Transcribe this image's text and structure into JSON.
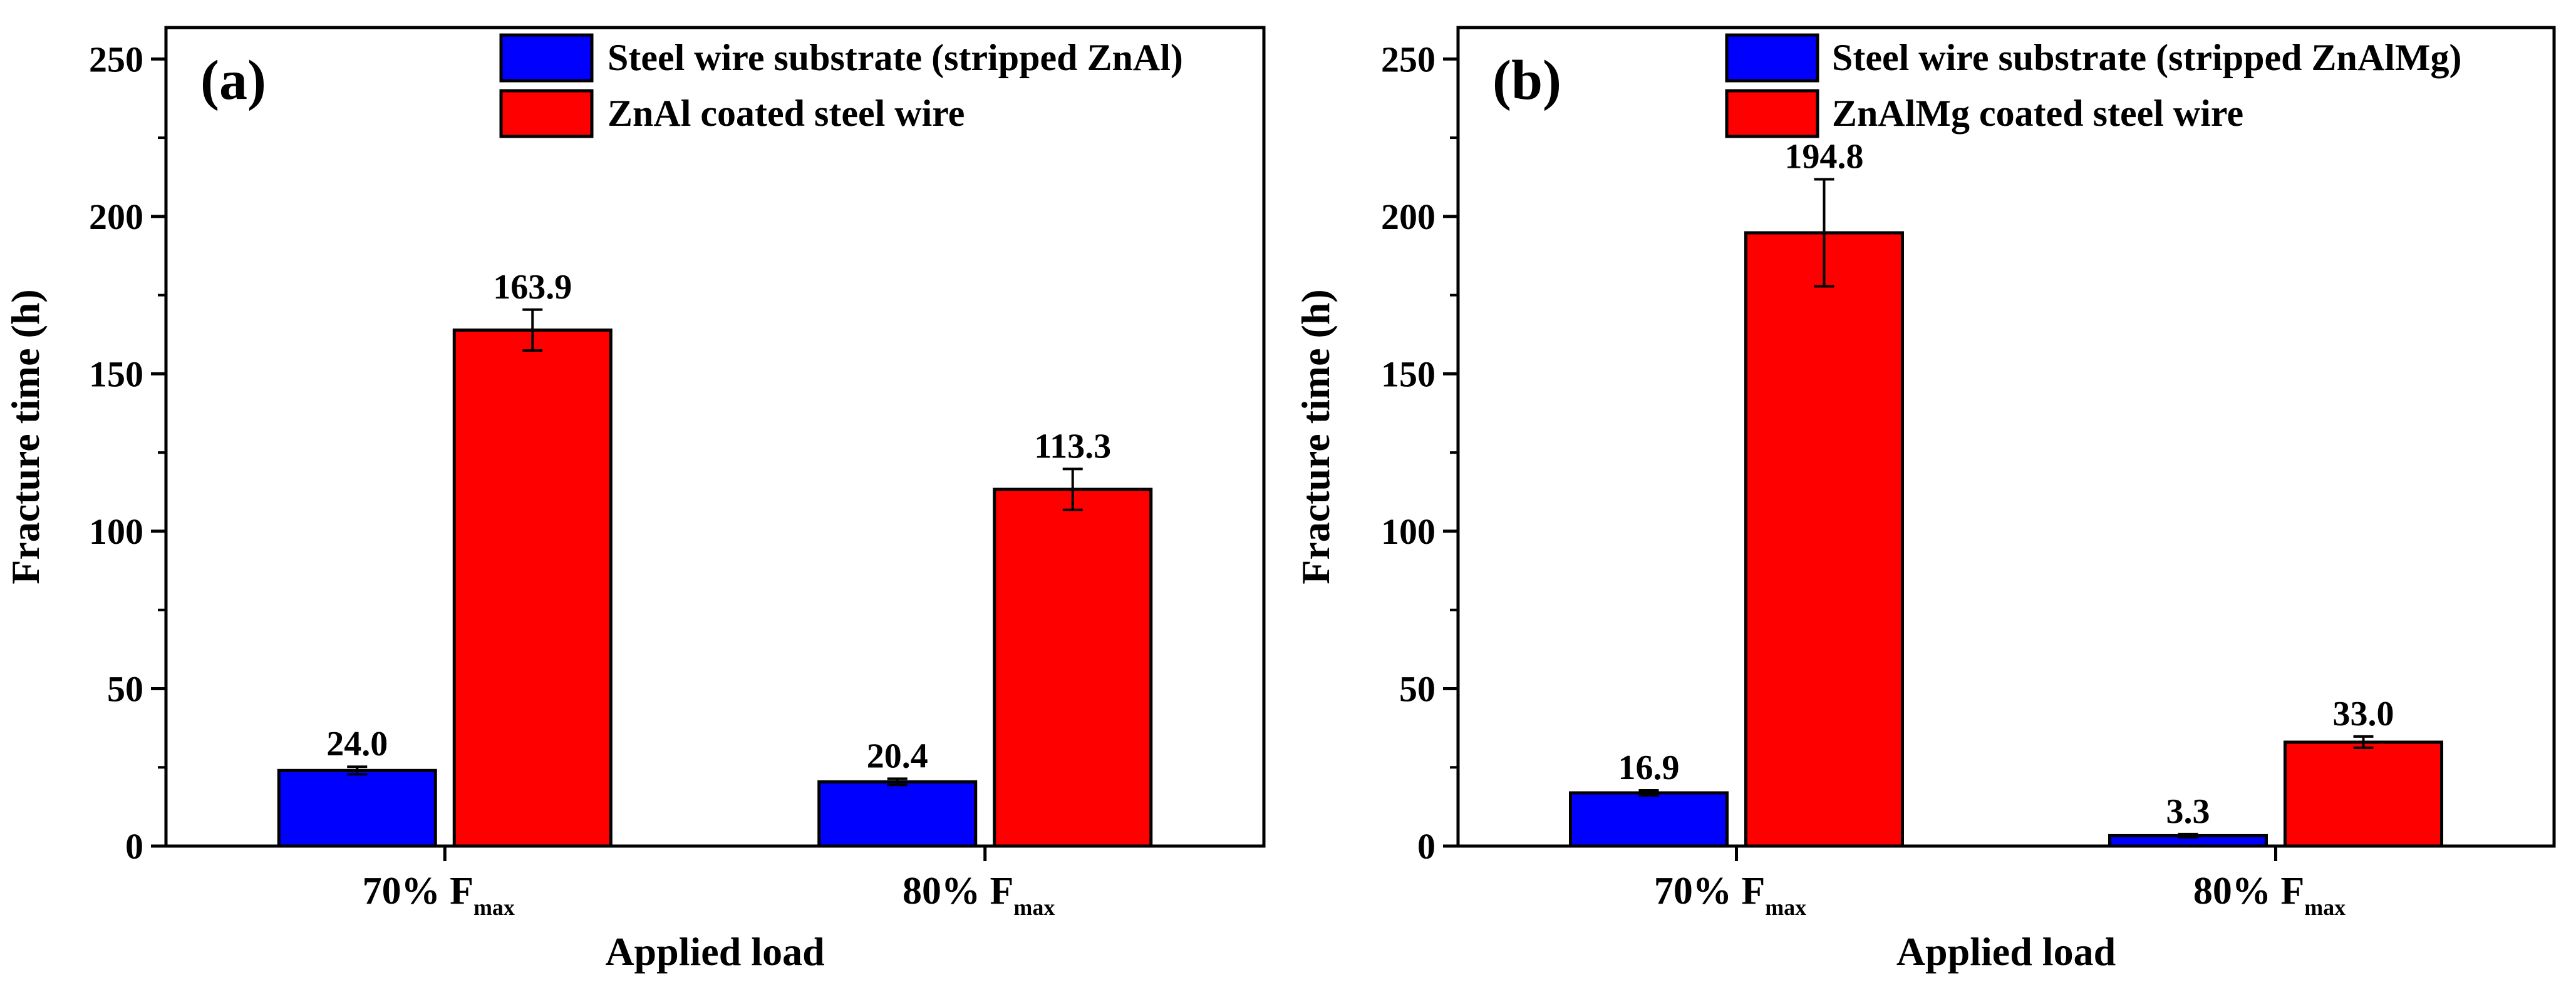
{
  "chart_data": [
    {
      "type": "bar",
      "panel_label": "(a)",
      "categories": [
        {
          "main": "70% F",
          "sub": "max"
        },
        {
          "main": "80% F",
          "sub": "max"
        }
      ],
      "series": [
        {
          "name": "Steel wire substrate (stripped ZnAl)",
          "color": "#0000ff",
          "values": [
            24.0,
            20.4
          ],
          "errors": [
            1.2,
            1.0
          ],
          "labels": [
            "24.0",
            "20.4"
          ]
        },
        {
          "name": "ZnAl coated steel wire",
          "color": "#ff0000",
          "values": [
            163.9,
            113.3
          ],
          "errors": [
            6.5,
            6.5
          ],
          "labels": [
            "163.9",
            "113.3"
          ]
        }
      ],
      "xlabel": "Applied load",
      "ylabel": "Fracture time (h)",
      "ylim": [
        0,
        260
      ],
      "yticks": [
        0,
        50,
        100,
        150,
        200,
        250
      ],
      "legend_position": "top-right"
    },
    {
      "type": "bar",
      "panel_label": "(b)",
      "categories": [
        {
          "main": "70% F",
          "sub": "max"
        },
        {
          "main": "80% F",
          "sub": "max"
        }
      ],
      "series": [
        {
          "name": "Steel wire substrate (stripped ZnAlMg)",
          "color": "#0000ff",
          "values": [
            16.9,
            3.3
          ],
          "errors": [
            0.8,
            0.5
          ],
          "labels": [
            "16.9",
            "3.3"
          ]
        },
        {
          "name": "ZnAlMg coated steel wire",
          "color": "#ff0000",
          "values": [
            194.8,
            33.0
          ],
          "errors": [
            17.0,
            1.8
          ],
          "labels": [
            "194.8",
            "33.0"
          ]
        }
      ],
      "xlabel": "Applied load",
      "ylabel": "Fracture time (h)",
      "ylim": [
        0,
        260
      ],
      "yticks": [
        0,
        50,
        100,
        150,
        200,
        250
      ],
      "legend_position": "top-right"
    }
  ]
}
